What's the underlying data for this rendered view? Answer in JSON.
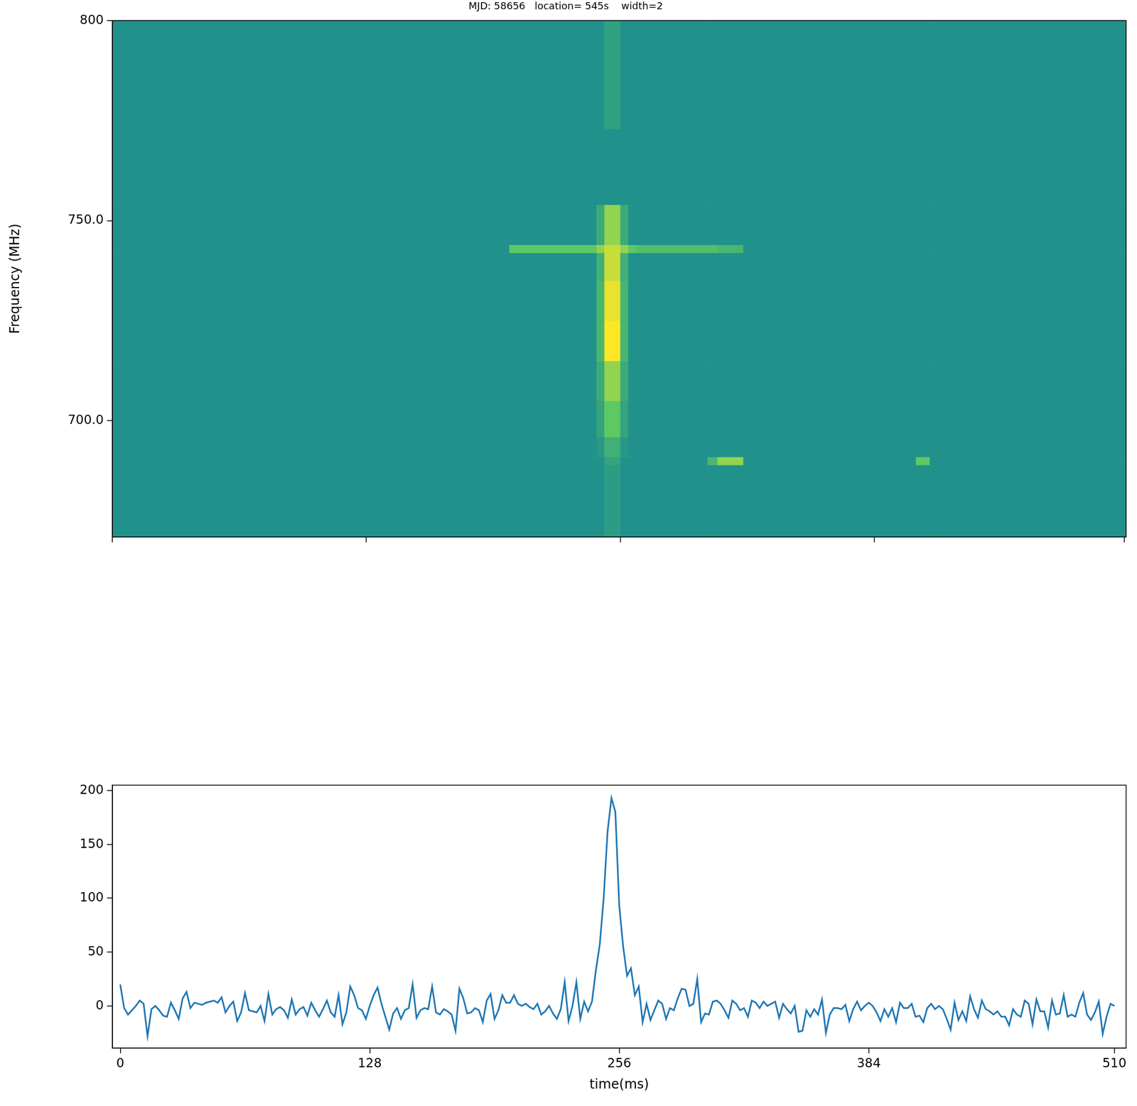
{
  "chart_data": [
    {
      "type": "heatmap",
      "title": "MJD: 58656   location= 545s    width=2",
      "y_label": "Frequency (MHz)",
      "xlim": [
        0,
        511
      ],
      "ylim": [
        671,
        800
      ],
      "xticks": [
        0,
        128,
        256,
        384,
        510
      ],
      "yticks": [
        {
          "value": 700,
          "label": "700.0"
        },
        {
          "value": 750,
          "label": "750.0"
        },
        800
      ],
      "tick_labels": "y",
      "grid": false,
      "x_edges": [
        0,
        200,
        230,
        244,
        248,
        252,
        256,
        260,
        264,
        300,
        305,
        318,
        400,
        405,
        412,
        511
      ],
      "y_edges": [
        671,
        689,
        691,
        696,
        705,
        715,
        725,
        735,
        742,
        744,
        754,
        773,
        800
      ],
      "cells": [
        [
          0,
          0,
          0,
          0,
          0.3,
          0.3,
          0,
          0,
          0,
          0,
          0,
          0,
          0,
          0,
          0
        ],
        [
          0,
          0,
          0,
          0,
          0.5,
          0.5,
          0,
          0,
          0,
          1,
          2,
          0,
          0,
          1.5,
          0
        ],
        [
          0,
          0,
          0,
          0.2,
          0.8,
          0.8,
          0.2,
          0,
          0,
          0,
          0,
          0,
          0,
          0,
          0
        ],
        [
          0,
          0,
          0,
          0.5,
          1.5,
          1.5,
          0.5,
          0,
          0,
          0,
          0,
          0,
          0,
          0,
          0
        ],
        [
          0,
          0,
          0,
          0.7,
          2,
          2,
          0.7,
          0,
          0,
          0,
          0,
          0,
          0,
          0,
          0
        ],
        [
          0,
          0,
          0,
          1,
          3,
          3,
          1,
          0,
          0,
          0,
          0,
          0,
          0,
          0,
          0
        ],
        [
          0,
          0,
          0,
          1,
          2.8,
          2.8,
          1,
          0,
          0,
          0,
          0,
          0,
          0,
          0,
          0
        ],
        [
          0,
          0,
          0,
          0.8,
          2.5,
          2.5,
          0.8,
          0,
          0,
          0,
          0,
          0,
          0,
          0,
          0
        ],
        [
          0,
          1.5,
          1.5,
          2,
          2.5,
          2.5,
          2,
          1.5,
          1.2,
          1.2,
          1,
          0,
          0,
          0,
          0
        ],
        [
          0,
          0,
          0,
          0.7,
          2,
          2,
          0.7,
          0,
          0,
          0,
          0,
          0,
          0,
          0,
          0
        ],
        [
          0,
          0,
          0,
          0,
          0,
          0,
          0,
          0,
          0,
          0,
          0,
          0,
          0,
          0,
          0
        ],
        [
          0,
          0,
          0,
          0,
          0.4,
          0.4,
          0,
          0,
          0,
          0,
          0,
          0,
          0,
          0,
          0
        ]
      ]
    },
    {
      "type": "line",
      "x_label": "time(ms)",
      "color": "#1f77b4",
      "xlim": [
        -4,
        516
      ],
      "ylim": [
        -39,
        205
      ],
      "xticks": [
        0,
        128,
        256,
        384,
        510
      ],
      "yticks": [
        0,
        50,
        100,
        150,
        200
      ],
      "grid": false,
      "x": [
        0,
        2,
        4,
        6,
        8,
        10,
        12,
        14,
        16,
        18,
        20,
        22,
        24,
        26,
        28,
        30,
        32,
        34,
        36,
        38,
        40,
        42,
        44,
        46,
        48,
        50,
        52,
        54,
        56,
        58,
        60,
        62,
        64,
        66,
        68,
        70,
        72,
        74,
        76,
        78,
        80,
        82,
        84,
        86,
        88,
        90,
        92,
        94,
        96,
        98,
        100,
        102,
        104,
        106,
        108,
        110,
        112,
        114,
        116,
        118,
        120,
        122,
        124,
        126,
        128,
        130,
        132,
        134,
        136,
        138,
        140,
        142,
        144,
        146,
        148,
        150,
        152,
        154,
        156,
        158,
        160,
        162,
        164,
        166,
        168,
        170,
        172,
        174,
        176,
        178,
        180,
        182,
        184,
        186,
        188,
        190,
        192,
        194,
        196,
        198,
        200,
        202,
        204,
        206,
        208,
        210,
        212,
        214,
        216,
        218,
        220,
        222,
        224,
        226,
        228,
        230,
        232,
        234,
        236,
        238,
        240,
        242,
        244,
        246,
        248,
        250,
        252,
        254,
        256,
        258,
        260,
        262,
        264,
        266,
        268,
        270,
        272,
        274,
        276,
        278,
        280,
        282,
        284,
        286,
        288,
        290,
        292,
        294,
        296,
        298,
        300,
        302,
        304,
        306,
        308,
        310,
        312,
        314,
        316,
        318,
        320,
        322,
        324,
        326,
        328,
        330,
        332,
        334,
        336,
        338,
        340,
        342,
        344,
        346,
        348,
        350,
        352,
        354,
        356,
        358,
        360,
        362,
        364,
        366,
        368,
        370,
        372,
        374,
        376,
        378,
        380,
        382,
        384,
        386,
        388,
        390,
        392,
        394,
        396,
        398,
        400,
        402,
        404,
        406,
        408,
        410,
        412,
        414,
        416,
        418,
        420,
        422,
        424,
        426,
        428,
        430,
        432,
        434,
        436,
        438,
        440,
        442,
        444,
        446,
        448,
        450,
        452,
        454,
        456,
        458,
        460,
        462,
        464,
        466,
        468,
        470,
        472,
        474,
        476,
        478,
        480,
        482,
        484,
        486,
        488,
        490,
        492,
        494,
        496,
        498,
        500,
        502,
        504,
        506,
        508,
        510
      ],
      "values": [
        20,
        -2,
        -8,
        -4,
        0,
        5,
        2,
        -28,
        -3,
        0,
        -4,
        -9,
        -10,
        3,
        -4,
        -12,
        7,
        13,
        -2,
        3,
        2,
        1,
        3,
        4,
        5,
        3,
        8,
        -6,
        0,
        4,
        -14,
        -6,
        12,
        -4,
        -5,
        -6,
        0,
        -14,
        11,
        -8,
        -3,
        -1,
        -4,
        -11,
        6,
        -8,
        -3,
        -1,
        -9,
        3,
        -4,
        -10,
        -3,
        5,
        -6,
        -10,
        10,
        -17,
        -6,
        18,
        10,
        -2,
        -4,
        -12,
        0,
        10,
        17,
        2,
        -10,
        -22,
        -7,
        -2,
        -12,
        -4,
        -2,
        20,
        -11,
        -4,
        -2,
        -3,
        18,
        -6,
        -8,
        -3,
        -5,
        -8,
        -23,
        16,
        7,
        -7,
        -6,
        -2,
        -4,
        -15,
        5,
        11,
        -12,
        -4,
        10,
        3,
        3,
        10,
        2,
        0,
        2,
        -1,
        -3,
        2,
        -8,
        -5,
        0,
        -7,
        -12,
        -3,
        22,
        -14,
        0,
        22,
        -12,
        4,
        -5,
        4,
        33,
        57,
        100,
        162,
        193,
        180,
        93,
        55,
        28,
        35,
        10,
        18,
        -15,
        2,
        -13,
        -4,
        5,
        2,
        -12,
        -2,
        -4,
        7,
        16,
        15,
        0,
        2,
        25,
        -15,
        -7,
        -8,
        4,
        5,
        2,
        -4,
        -11,
        5,
        2,
        -4,
        -2,
        -10,
        5,
        3,
        -2,
        4,
        0,
        2,
        4,
        -11,
        2,
        -3,
        -7,
        0,
        -24,
        -23,
        -4,
        -10,
        -3,
        -8,
        6,
        -25,
        -8,
        -2,
        -2,
        -3,
        1,
        -14,
        -3,
        4,
        -4,
        0,
        3,
        0,
        -6,
        -14,
        -3,
        -10,
        -2,
        -15,
        3,
        -2,
        -2,
        2,
        -10,
        -9,
        -15,
        -2,
        2,
        -3,
        0,
        -3,
        -12,
        -22,
        3,
        -13,
        -5,
        -14,
        9,
        -3,
        -11,
        5,
        -3,
        -5,
        -8,
        -5,
        -10,
        -10,
        -18,
        -3,
        -8,
        -10,
        5,
        2,
        -17,
        6,
        -5,
        -5,
        -20,
        5,
        -8,
        -7,
        10,
        -10,
        -8,
        -10,
        3,
        12,
        -8,
        -13,
        -6,
        4,
        -26,
        -10,
        2,
        0
      ]
    }
  ]
}
